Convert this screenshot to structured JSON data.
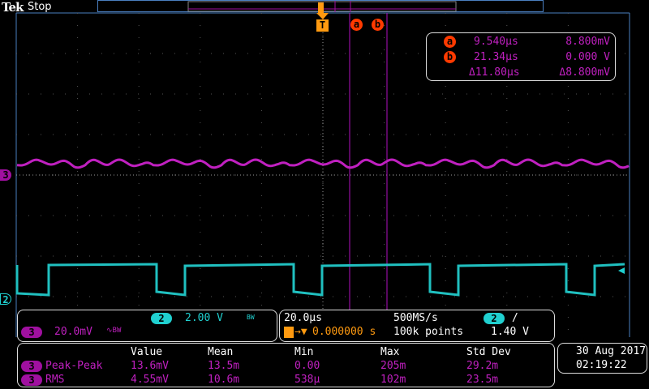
{
  "brand": "Tek",
  "status": "Stop",
  "markers": {
    "trigger": "T",
    "cursor_a": "a",
    "cursor_b": "b",
    "ch3": "3",
    "ch2": "2"
  },
  "cursors": {
    "a": {
      "label": "a",
      "time": "9.540µs",
      "value": "8.800mV"
    },
    "b": {
      "label": "b",
      "time": "21.34µs",
      "value": "0.000 V"
    },
    "delta": {
      "time": "Δ11.80µs",
      "value": "Δ8.800mV"
    }
  },
  "channels": {
    "ch2": {
      "badge": "2",
      "scale": "2.00 V",
      "bw": "BW"
    },
    "ch3": {
      "badge": "3",
      "scale": "20.0mV",
      "bw": "∿BW"
    }
  },
  "horizontal": {
    "timebase": "20.0µs",
    "sample_rate": "500MS/s",
    "trigger_pos": "0.000000 s",
    "record": "100k points",
    "trig_source": "2",
    "trig_slope": "/",
    "trig_level": "1.40 V"
  },
  "measurements": {
    "headers": [
      "Value",
      "Mean",
      "Min",
      "Max",
      "Std Dev"
    ],
    "rows": [
      {
        "ch": "3",
        "name": "Peak-Peak",
        "values": [
          "13.6mV",
          "13.5m",
          "0.00",
          "205m",
          "29.2m"
        ]
      },
      {
        "ch": "3",
        "name": "RMS",
        "values": [
          "4.55mV",
          "10.6m",
          "538µ",
          "102m",
          "23.5m"
        ]
      }
    ]
  },
  "datetime": {
    "date": "30 Aug 2017",
    "time": "02:19:22"
  },
  "colors": {
    "ch2": "#20d0d0",
    "ch3": "#c020c0",
    "trigger": "#ff9a10",
    "cursor": "#ff3a00"
  }
}
